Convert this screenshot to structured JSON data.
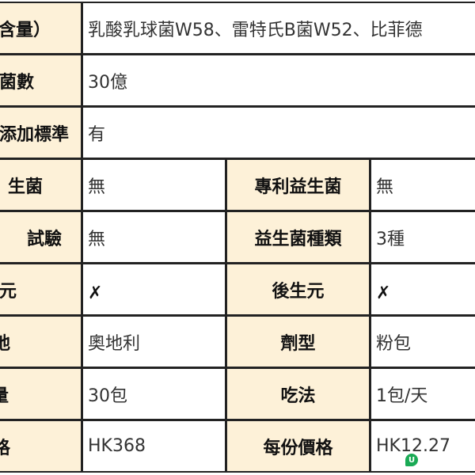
{
  "rows": [
    {
      "label": "含量）",
      "value": "乳酸乳球菌W58、雷特氏B菌W52、比菲德"
    },
    {
      "label": "菌數",
      "value": "30億"
    },
    {
      "label": "添加標準",
      "value": "有"
    },
    {
      "label": "生菌",
      "value": "無",
      "label2": "專利益生菌",
      "value2": "無"
    },
    {
      "label": "試驗",
      "value": "無",
      "label2": "益生菌種類",
      "value2": "3種"
    },
    {
      "label": "元",
      "value": "✗",
      "label2": "後生元",
      "value2": "✗"
    },
    {
      "label": "地",
      "value": "奧地利",
      "label2": "劑型",
      "value2": "粉包"
    },
    {
      "label": "量",
      "value": "30包",
      "label2": "吃法",
      "value2": "1包/天"
    },
    {
      "label": "格",
      "value": "HK368",
      "label2": "每份價格",
      "value2": "HK12.27"
    }
  ],
  "watermark": "U",
  "colors": {
    "label_bg": "#fdf1d8",
    "border": "#222222",
    "watermark": "#1aaa55"
  }
}
